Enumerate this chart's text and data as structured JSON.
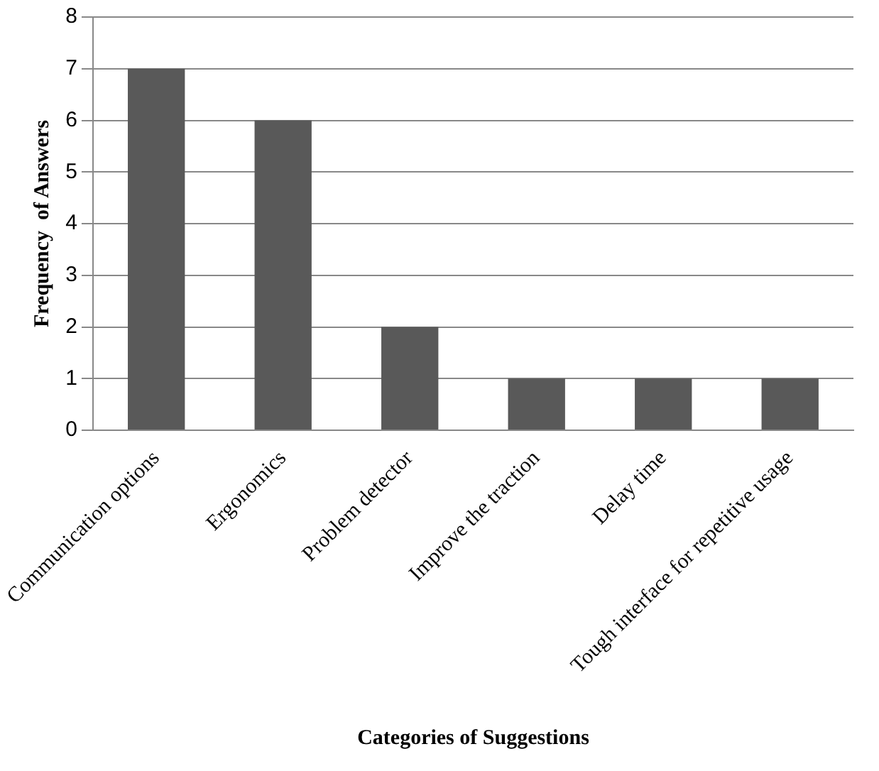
{
  "chart_data": {
    "type": "bar",
    "xlabel": "Categories of Suggestions",
    "ylabel": "Frequency  of Answers",
    "categories": [
      "Communication options",
      "Ergonomics",
      "Problem detector",
      "Improve the traction",
      "Delay time",
      "Tough interface for repetitive usage"
    ],
    "values": [
      7,
      6,
      2,
      1,
      1,
      1
    ],
    "color": "#595959",
    "ylim": [
      0,
      8
    ],
    "yticks": [
      0,
      1,
      2,
      3,
      4,
      5,
      6,
      7,
      8
    ],
    "grid": "y",
    "legend": false
  }
}
